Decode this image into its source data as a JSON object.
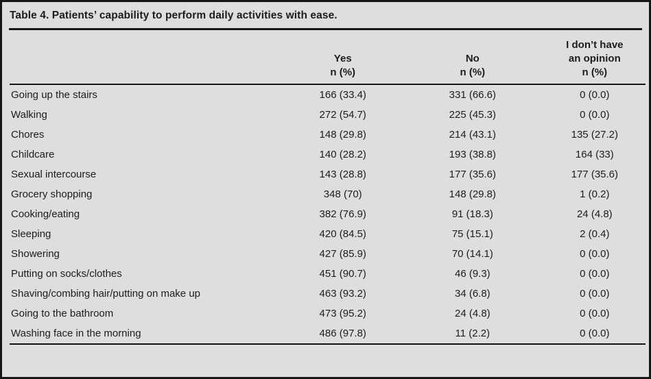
{
  "title": "Table 4. Patients’ capability to perform daily activities with ease.",
  "header": {
    "activity_label": "",
    "yes": {
      "line1": "Yes",
      "line2": "n (%)"
    },
    "no": {
      "line1": "No",
      "line2": "n (%)"
    },
    "opinion": {
      "line1": "I don’t have",
      "line2": "an opinion",
      "line3": "n (%)"
    }
  },
  "rows": [
    {
      "activity": "Going up the stairs",
      "yes": "166 (33.4)",
      "no": "331 (66.6)",
      "no_opinion": "0 (0.0)"
    },
    {
      "activity": "Walking",
      "yes": "272 (54.7)",
      "no": "225 (45.3)",
      "no_opinion": "0 (0.0)"
    },
    {
      "activity": "Chores",
      "yes": "148 (29.8)",
      "no": "214 (43.1)",
      "no_opinion": "135 (27.2)"
    },
    {
      "activity": "Childcare",
      "yes": "140 (28.2)",
      "no": "193 (38.8)",
      "no_opinion": "164 (33)"
    },
    {
      "activity": "Sexual intercourse",
      "yes": "143 (28.8)",
      "no": "177 (35.6)",
      "no_opinion": "177 (35.6)"
    },
    {
      "activity": "Grocery shopping",
      "yes": "348 (70)",
      "no": "148 (29.8)",
      "no_opinion": "1 (0.2)"
    },
    {
      "activity": "Cooking/eating",
      "yes": "382 (76.9)",
      "no": "91 (18.3)",
      "no_opinion": "24 (4.8)"
    },
    {
      "activity": "Sleeping",
      "yes": "420 (84.5)",
      "no": "75 (15.1)",
      "no_opinion": "2 (0.4)"
    },
    {
      "activity": "Showering",
      "yes": "427 (85.9)",
      "no": "70 (14.1)",
      "no_opinion": "0 (0.0)"
    },
    {
      "activity": "Putting on socks/clothes",
      "yes": "451 (90.7)",
      "no": "46 (9.3)",
      "no_opinion": "0 (0.0)"
    },
    {
      "activity": "Shaving/combing hair/putting on make up",
      "yes": "463 (93.2)",
      "no": "34 (6.8)",
      "no_opinion": "0 (0.0)"
    },
    {
      "activity": "Going to the bathroom",
      "yes": "473 (95.2)",
      "no": "24 (4.8)",
      "no_opinion": "0 (0.0)"
    },
    {
      "activity": "Washing face in the morning",
      "yes": "486 (97.8)",
      "no": "11 (2.2)",
      "no_opinion": "0 (0.0)"
    }
  ],
  "colors": {
    "background": "#dedede",
    "border": "#161616",
    "text": "#1c1c1c"
  }
}
